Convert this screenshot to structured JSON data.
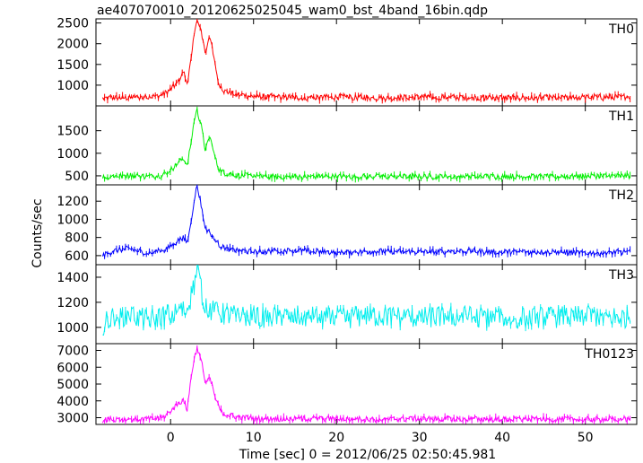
{
  "chart_data": {
    "type": "line",
    "title": "ae407070010_20120625025045_wam0_bst_4band_16bin.qdp",
    "xlabel": "Time [sec] 0 = 2012/06/25 02:50:45.981",
    "ylabel": "Counts/sec",
    "xlim": [
      -9.0,
      56.2
    ],
    "x_ticks": [
      0,
      10,
      20,
      30,
      40,
      50
    ],
    "grid": false,
    "panels": [
      {
        "name": "TH0",
        "color": "#ff0000",
        "ylim": [
          500,
          2600
        ],
        "y_ticks": [
          1000,
          1500,
          2000,
          2500
        ],
        "points": [
          [
            -8.2,
            680
          ],
          [
            -7,
            700
          ],
          [
            -5,
            690
          ],
          [
            -3,
            710
          ],
          [
            -1,
            760
          ],
          [
            0,
            900
          ],
          [
            0.8,
            1050
          ],
          [
            1.5,
            1350
          ],
          [
            2.0,
            1050
          ],
          [
            2.5,
            1650
          ],
          [
            2.9,
            2350
          ],
          [
            3.2,
            2550
          ],
          [
            3.7,
            2300
          ],
          [
            4.2,
            1750
          ],
          [
            4.7,
            2250
          ],
          [
            5.2,
            1650
          ],
          [
            5.8,
            1050
          ],
          [
            6.5,
            850
          ],
          [
            8,
            780
          ],
          [
            10,
            730
          ],
          [
            15,
            700
          ],
          [
            20,
            710
          ],
          [
            25,
            690
          ],
          [
            30,
            720
          ],
          [
            35,
            700
          ],
          [
            40,
            700
          ],
          [
            45,
            690
          ],
          [
            50,
            700
          ],
          [
            55.5,
            720
          ]
        ]
      },
      {
        "name": "TH1",
        "color": "#00ee00",
        "ylim": [
          300,
          2050
        ],
        "y_ticks": [
          500,
          1000,
          1500
        ],
        "points": [
          [
            -8.2,
            470
          ],
          [
            -7,
            490
          ],
          [
            -5,
            520
          ],
          [
            -3,
            480
          ],
          [
            -1,
            510
          ],
          [
            0,
            640
          ],
          [
            0.8,
            750
          ],
          [
            1.5,
            900
          ],
          [
            2.0,
            700
          ],
          [
            2.5,
            1300
          ],
          [
            2.9,
            1800
          ],
          [
            3.2,
            1950
          ],
          [
            3.7,
            1600
          ],
          [
            4.2,
            1050
          ],
          [
            4.7,
            1400
          ],
          [
            5.2,
            1000
          ],
          [
            5.8,
            650
          ],
          [
            6.5,
            560
          ],
          [
            8,
            520
          ],
          [
            10,
            490
          ],
          [
            15,
            480
          ],
          [
            20,
            490
          ],
          [
            25,
            480
          ],
          [
            30,
            490
          ],
          [
            35,
            480
          ],
          [
            40,
            490
          ],
          [
            45,
            480
          ],
          [
            50,
            490
          ],
          [
            55.5,
            500
          ]
        ]
      },
      {
        "name": "TH2",
        "color": "#0000ff",
        "ylim": [
          500,
          1380
        ],
        "y_ticks": [
          600,
          800,
          1000,
          1200
        ],
        "points": [
          [
            -8.2,
            600
          ],
          [
            -7,
            650
          ],
          [
            -5,
            680
          ],
          [
            -3,
            630
          ],
          [
            -1,
            650
          ],
          [
            0,
            700
          ],
          [
            0.8,
            760
          ],
          [
            1.5,
            800
          ],
          [
            2.0,
            740
          ],
          [
            2.5,
            1000
          ],
          [
            2.9,
            1250
          ],
          [
            3.2,
            1370
          ],
          [
            3.7,
            1150
          ],
          [
            4.2,
            900
          ],
          [
            4.7,
            850
          ],
          [
            5.2,
            780
          ],
          [
            5.8,
            720
          ],
          [
            6.5,
            680
          ],
          [
            8,
            660
          ],
          [
            10,
            640
          ],
          [
            15,
            660
          ],
          [
            20,
            630
          ],
          [
            25,
            650
          ],
          [
            30,
            640
          ],
          [
            35,
            650
          ],
          [
            40,
            640
          ],
          [
            45,
            640
          ],
          [
            50,
            630
          ],
          [
            55.5,
            640
          ]
        ]
      },
      {
        "name": "TH3",
        "color": "#00eeee",
        "ylim": [
          870,
          1500
        ],
        "y_ticks": [
          1000,
          1200,
          1400
        ],
        "points": [
          [
            -8.2,
            1020
          ],
          [
            -7,
            1080
          ],
          [
            -5,
            1100
          ],
          [
            -3,
            1060
          ],
          [
            -1,
            1090
          ],
          [
            0,
            1100
          ],
          [
            1,
            1120
          ],
          [
            2,
            1150
          ],
          [
            2.5,
            1250
          ],
          [
            3.0,
            1400
          ],
          [
            3.3,
            1450
          ],
          [
            3.8,
            1250
          ],
          [
            4.5,
            1150
          ],
          [
            5.5,
            1120
          ],
          [
            7,
            1100
          ],
          [
            10,
            1080
          ],
          [
            15,
            1090
          ],
          [
            20,
            1070
          ],
          [
            25,
            1090
          ],
          [
            30,
            1080
          ],
          [
            35,
            1090
          ],
          [
            40,
            1070
          ],
          [
            45,
            1080
          ],
          [
            50,
            1090
          ],
          [
            55.5,
            1080
          ]
        ]
      },
      {
        "name": "TH0123",
        "color": "#ff00ff",
        "ylim": [
          2600,
          7400
        ],
        "y_ticks": [
          3000,
          4000,
          5000,
          6000,
          7000
        ],
        "points": [
          [
            -8.2,
            2850
          ],
          [
            -7,
            2900
          ],
          [
            -5,
            2920
          ],
          [
            -3,
            2900
          ],
          [
            -1,
            3000
          ],
          [
            0,
            3350
          ],
          [
            0.8,
            3800
          ],
          [
            1.5,
            4000
          ],
          [
            2.0,
            3500
          ],
          [
            2.5,
            5500
          ],
          [
            2.9,
            6700
          ],
          [
            3.2,
            7100
          ],
          [
            3.7,
            6400
          ],
          [
            4.2,
            5000
          ],
          [
            4.7,
            5400
          ],
          [
            5.2,
            4500
          ],
          [
            5.8,
            3600
          ],
          [
            6.5,
            3200
          ],
          [
            8,
            3050
          ],
          [
            10,
            2950
          ],
          [
            15,
            2920
          ],
          [
            20,
            2950
          ],
          [
            25,
            2900
          ],
          [
            30,
            2930
          ],
          [
            35,
            2920
          ],
          [
            40,
            2900
          ],
          [
            45,
            2920
          ],
          [
            50,
            2900
          ],
          [
            55.5,
            2900
          ]
        ]
      }
    ]
  }
}
